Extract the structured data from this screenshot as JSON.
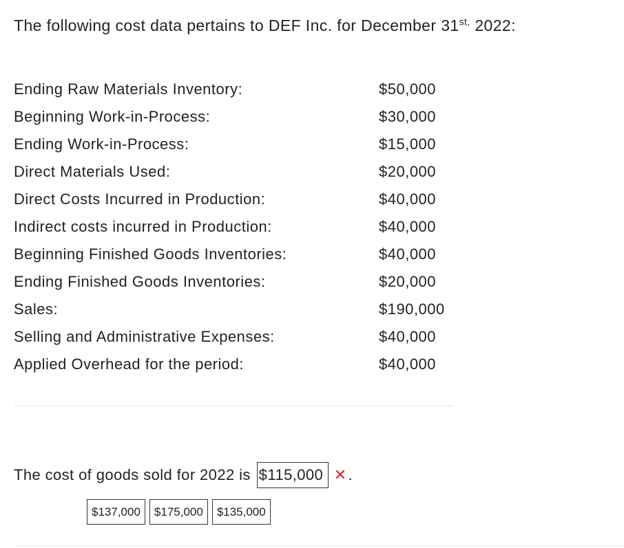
{
  "intro": {
    "before": "The following cost data pertains to DEF Inc. for December 31",
    "superscript": "st,",
    "after": " 2022:"
  },
  "cost_items": [
    {
      "label": "Ending Raw Materials Inventory:",
      "value": "$50,000"
    },
    {
      "label": "Beginning Work-in-Process:",
      "value": "$30,000"
    },
    {
      "label": "Ending Work-in-Process:",
      "value": "$15,000"
    },
    {
      "label": "Direct Materials Used:",
      "value": "$20,000"
    },
    {
      "label": "Direct Costs Incurred in Production:",
      "value": "$40,000"
    },
    {
      "label": "Indirect costs incurred in Production:",
      "value": "$40,000"
    },
    {
      "label": "Beginning Finished Goods Inventories:",
      "value": "$40,000"
    },
    {
      "label": "Ending Finished Goods Inventories:",
      "value": "$20,000"
    },
    {
      "label": "Sales:",
      "value": "$190,000"
    },
    {
      "label": "Selling and Administrative Expenses:",
      "value": "$40,000"
    },
    {
      "label": "Applied Overhead for the period:",
      "value": "$40,000"
    }
  ],
  "question": {
    "prefix": "The cost of goods sold for 2022 is",
    "answer": "$115,000",
    "status_icon": "cross-icon",
    "status_symbol": "✕",
    "status_color": "#d9252b",
    "suffix": "."
  },
  "options": [
    "$137,000",
    "$175,000",
    "$135,000"
  ]
}
